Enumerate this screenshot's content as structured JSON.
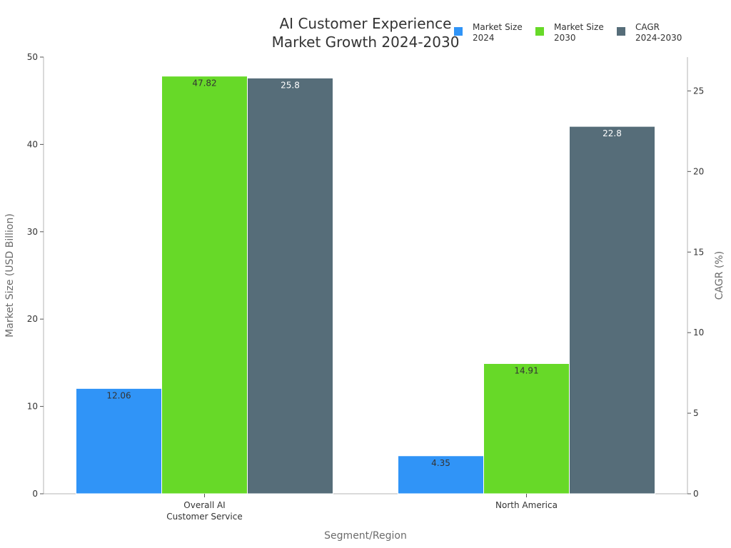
{
  "chart_data": {
    "type": "bar",
    "title": [
      "AI Customer Experience",
      "Market Growth 2024-2030"
    ],
    "xlabel": "Segment/Region",
    "ylabel": "Market Size (USD Billion)",
    "ylabel_right": "CAGR (%)",
    "categories": [
      [
        "Overall AI",
        "Customer Service"
      ],
      [
        "North America"
      ]
    ],
    "ylim": [
      0,
      50
    ],
    "ylim_right": [
      0,
      27.1
    ],
    "yticks": [
      0,
      10,
      20,
      30,
      40,
      50
    ],
    "yticks_right": [
      0,
      5,
      10,
      15,
      20,
      25
    ],
    "legend_position": "top-right",
    "series": [
      {
        "name": [
          "Market Size",
          "2024"
        ],
        "axis": "left",
        "color": "#3094f7",
        "label_color": "#333333",
        "values": [
          12.06,
          4.35
        ]
      },
      {
        "name": [
          "Market Size",
          "2030"
        ],
        "axis": "left",
        "color": "#67d928",
        "label_color": "#333333",
        "values": [
          47.82,
          14.91
        ]
      },
      {
        "name": [
          "CAGR",
          "2024-2030"
        ],
        "axis": "right",
        "color": "#566d79",
        "label_color": "#ffffff",
        "values": [
          25.8,
          22.8
        ]
      }
    ]
  }
}
